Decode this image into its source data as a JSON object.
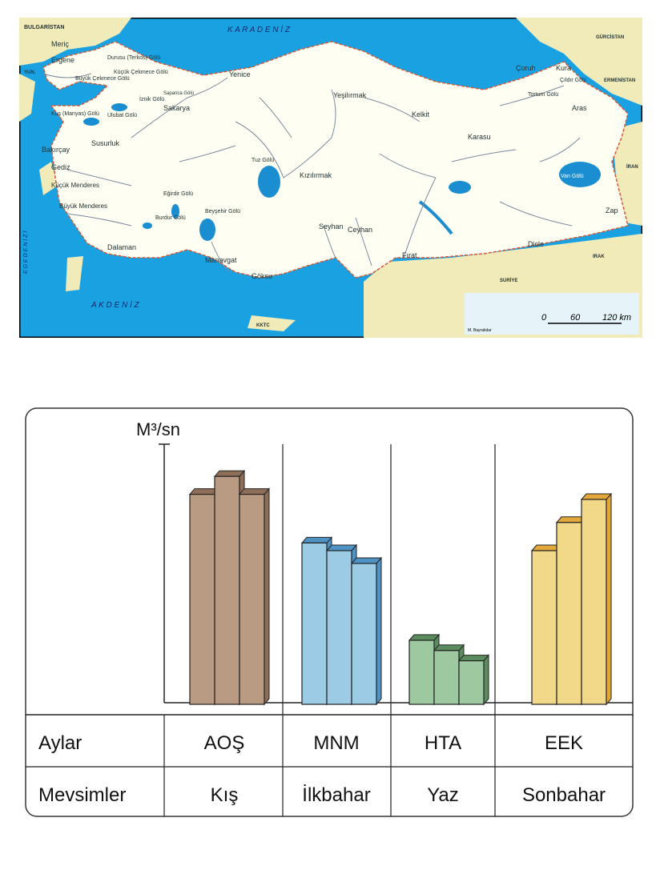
{
  "map": {
    "labels": {
      "sea_north": "K A R A D E N İ Z",
      "sea_south": "A K D E N İ Z",
      "sea_west": "E G E  D E N İ Z İ",
      "bulgaria": "BULGARİSTAN",
      "georgia": "GÜRCİSTAN",
      "armenia": "ERMENİSTAN",
      "iran": "İRAN",
      "iraq": "IRAK",
      "syria": "SURİYE",
      "greece": "YUN.",
      "kktc": "KKTC",
      "meric": "Meriç",
      "ergene": "Ergene",
      "terkos": "Durusu (Terkos) Gölü",
      "buyukcekmece": "Büyük Çekmece Gölü",
      "kucukcekmece": "Küçük Çekmece Gölü",
      "sapanca": "Sapanca Gölü",
      "iznik": "İznik Gölü",
      "manyas": "Kuş (Manyas) Gölü",
      "ulubat": "Ulubat Gölü",
      "sakarya": "Sakarya",
      "yenice": "Yenice",
      "yesilirmak": "Yeşilırmak",
      "kelkit": "Kelkit",
      "coruh": "Çoruh",
      "kura": "Kura",
      "cildir": "Çıldır Gölü",
      "tortum": "Tortum Gölü",
      "aras": "Aras",
      "karasu": "Karasu",
      "balikesir": "Bakırçay",
      "gediz": "Gediz",
      "susurluk": "Susurluk",
      "kucukmenderes": "Küçük Menderes",
      "buyukmenderes": "Büyük Menderes",
      "egirdir": "Eğirdir Gölü",
      "burdur": "Burdur Gölü",
      "beysehir": "Beyşehir Gölü",
      "tuz": "Tuz Gölü",
      "kizilirmak": "Kızılırmak",
      "van": "Van Gölü",
      "seyhan": "Seyhan",
      "ceyhan": "Ceyhan",
      "firat": "Fırat",
      "dicle": "Dicle",
      "zap": "Zap",
      "dalaman": "Dalaman",
      "manavgat": "Manavgat",
      "goksu": "Göksu",
      "author": "M. Bayrakdar"
    },
    "scale": {
      "ticks": [
        "0",
        "60",
        "120 km"
      ]
    }
  },
  "chart_data": {
    "type": "bar",
    "ylabel": "M³/sn",
    "row_header_months": "Aylar",
    "row_header_seasons": "Mevsimler",
    "categories": [
      "AOŞ",
      "MNM",
      "HTA",
      "EEK"
    ],
    "seasons": [
      "Kış",
      "İlkbahar",
      "Yaz",
      "Sonbahar"
    ],
    "ylim": [
      0,
      100
    ],
    "colors": {
      "Kış": "#b99a82",
      "İlkbahar": "#9ccbe6",
      "Yaz": "#9ec9a0",
      "Sonbahar": "#f2d98a"
    },
    "side_colors": {
      "Kış": "#8f6e58",
      "İlkbahar": "#4f93c4",
      "Yaz": "#5a8c5e",
      "Sonbahar": "#e3a83a"
    },
    "groups": [
      {
        "season": "Kış",
        "values": [
          82,
          89,
          82
        ]
      },
      {
        "season": "İlkbahar",
        "values": [
          63,
          60,
          55
        ]
      },
      {
        "season": "Yaz",
        "values": [
          25,
          21,
          17
        ]
      },
      {
        "season": "Sonbahar",
        "values": [
          60,
          71,
          80
        ]
      }
    ]
  }
}
